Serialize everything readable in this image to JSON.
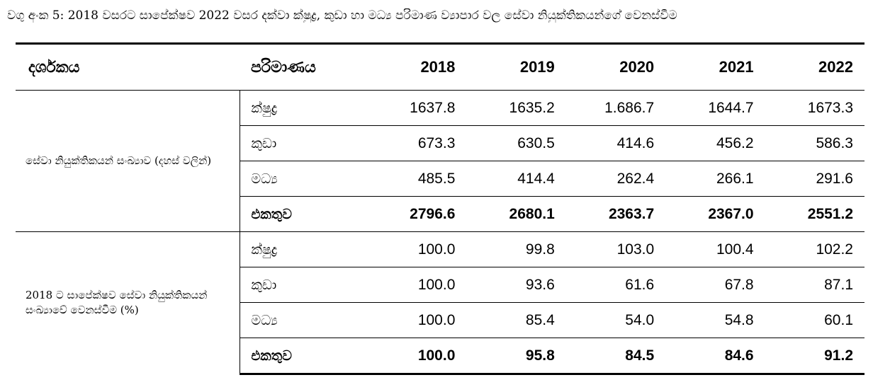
{
  "caption": "වගු අංක 5: 2018 වසරට සාපේක්ෂව 2022 වසර දක්වා ක්ෂුද්‍ර, කුඩා හා මධ්‍ය පරිමාණ ව්‍යාපාර වල සේවා නියුක්තිකයන්ගේ වෙනස්වීම",
  "headers": {
    "indicator": "දර්ශකය",
    "size": "පරිමාණය",
    "years": [
      "2018",
      "2019",
      "2020",
      "2021",
      "2022"
    ]
  },
  "groups": [
    {
      "indicator": "සේවා නියුක්තිකයන් සංඛ්‍යාව (දහස් වලින්)",
      "rows": [
        {
          "size": "ක්ෂුද්‍ර",
          "values": [
            "1637.8",
            "1635.2",
            "1.686.7",
            "1644.7",
            "1673.3"
          ]
        },
        {
          "size": "කුඩා",
          "values": [
            "673.3",
            "630.5",
            "414.6",
            "456.2",
            "586.3"
          ]
        },
        {
          "size": "මධ්‍ය",
          "values": [
            "485.5",
            "414.4",
            "262.4",
            "266.1",
            "291.6"
          ]
        },
        {
          "size": "එකතුව",
          "values": [
            "2796.6",
            "2680.1",
            "2363.7",
            "2367.0",
            "2551.2"
          ]
        }
      ]
    },
    {
      "indicator": "2018 ට සාපේක්ෂව සේවා නියුක්තිකයන් සංඛ්‍යාවේ වෙනස්වීම (%)",
      "rows": [
        {
          "size": "ක්ෂුද්‍ර",
          "values": [
            "100.0",
            "99.8",
            "103.0",
            "100.4",
            "102.2"
          ]
        },
        {
          "size": "කුඩා",
          "values": [
            "100.0",
            "93.6",
            "61.6",
            "67.8",
            "87.1"
          ]
        },
        {
          "size": "මධ්‍ය",
          "values": [
            "100.0",
            "85.4",
            "54.0",
            "54.8",
            "60.1"
          ]
        },
        {
          "size": "එකතුව",
          "values": [
            "100.0",
            "95.8",
            "84.5",
            "84.6",
            "91.2"
          ]
        }
      ]
    }
  ]
}
